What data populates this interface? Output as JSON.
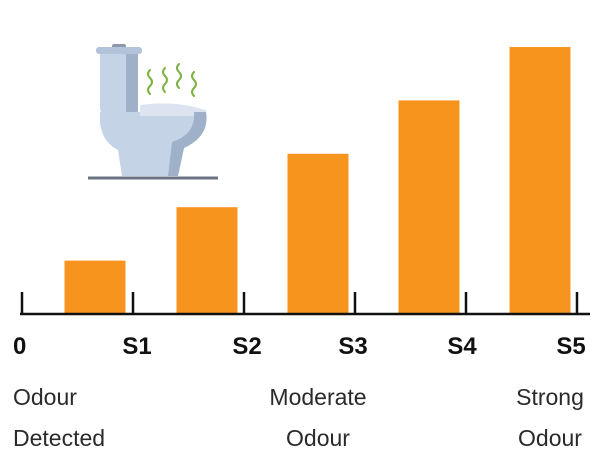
{
  "chart_data": {
    "type": "bar",
    "x_ticks": [
      "0",
      "S1",
      "S2",
      "S3",
      "S4",
      "S5"
    ],
    "categories": [
      "S1",
      "S2",
      "S3",
      "S4",
      "S5"
    ],
    "values": [
      1,
      2,
      3,
      4,
      5
    ],
    "ylim": [
      0,
      5.3
    ],
    "grid": false,
    "legend": "none",
    "annotations": [
      {
        "id": "low",
        "lines": [
          "Odour",
          "Detected"
        ]
      },
      {
        "id": "moderate",
        "lines": [
          "Moderate",
          "Odour"
        ]
      },
      {
        "id": "strong",
        "lines": [
          "Strong",
          "Odour"
        ]
      }
    ]
  },
  "illustration": {
    "icon": "smelly-toilet-icon"
  },
  "colors": {
    "bar": "#f7941d",
    "axis": "#111111",
    "toilet": "#c5d3e6",
    "toilet_shade": "#9fb1c9",
    "odour": "#7fb241"
  }
}
